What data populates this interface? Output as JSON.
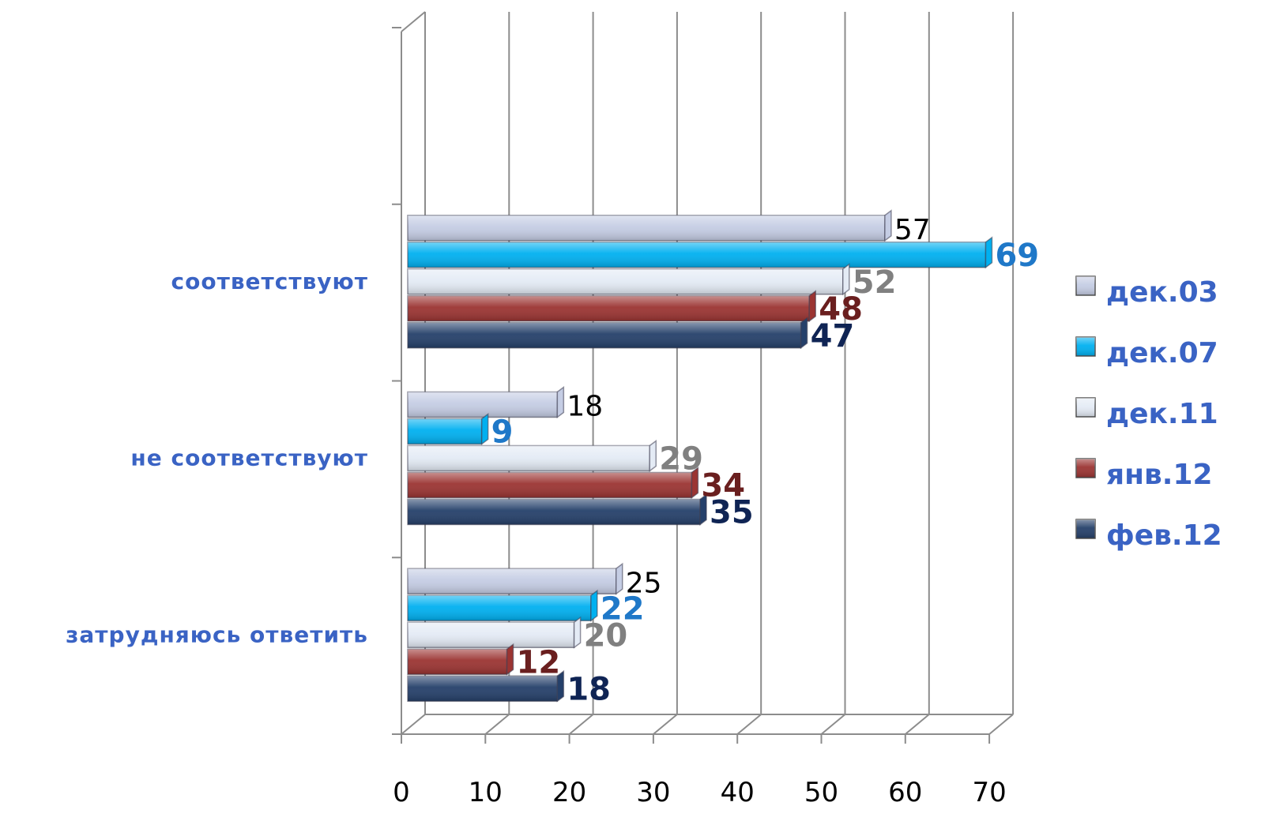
{
  "chart_data": {
    "type": "bar",
    "orientation": "horizontal",
    "categories": [
      "соответствуют",
      "не соответствуют",
      "затрудняюсь ответить"
    ],
    "series": [
      {
        "name": "дек.03",
        "values": [
          57,
          18,
          25
        ],
        "color": "#c5cde4",
        "label_color": "#000000",
        "label_bold": false
      },
      {
        "name": "дек.07",
        "values": [
          69,
          9,
          22
        ],
        "color": "#00b0f0",
        "label_color": "#1f78c8",
        "label_bold": true
      },
      {
        "name": "дек.11",
        "values": [
          52,
          29,
          20
        ],
        "color": "#e4ebf5",
        "label_color": "#808080",
        "label_bold": true
      },
      {
        "name": "янв.12",
        "values": [
          48,
          34,
          12
        ],
        "color": "#9b3432",
        "label_color": "#6a1f1f",
        "label_bold": true
      },
      {
        "name": "фев.12",
        "values": [
          47,
          35,
          18
        ],
        "color": "#25406a",
        "label_color": "#0f2454",
        "label_bold": true
      }
    ],
    "xlim": [
      0,
      70
    ],
    "xticks": [
      "0",
      "10",
      "20",
      "30",
      "40",
      "50",
      "60",
      "70"
    ],
    "grid": true,
    "legend_position": "right",
    "title": "",
    "xlabel": "",
    "ylabel": ""
  }
}
